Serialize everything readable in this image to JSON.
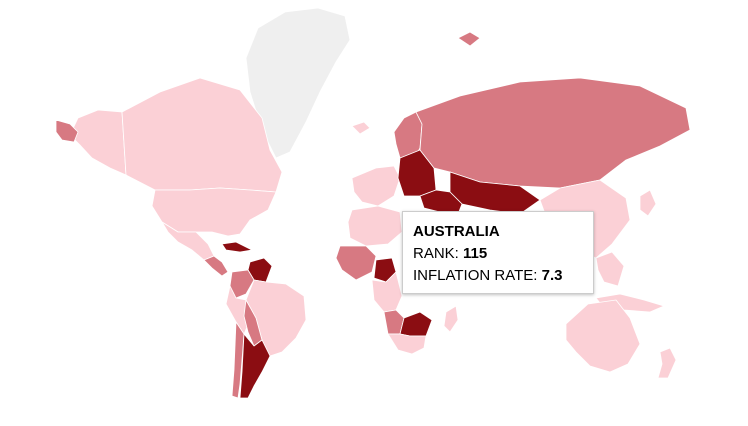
{
  "colors": {
    "no_data": "#efefef",
    "scale_low": "#fbd0d6",
    "scale_mid": "#d77982",
    "scale_high": "#8b0d12",
    "background": "#ffffff"
  },
  "tooltip": {
    "country": "AUSTRALIA",
    "rank_label": "RANK:",
    "rank_value": "115",
    "rate_label": "INFLATION RATE:",
    "rate_value": "7.3"
  },
  "regions": [
    {
      "name": "greenland",
      "shade": "none"
    },
    {
      "name": "canada",
      "shade": "low"
    },
    {
      "name": "usa",
      "shade": "low"
    },
    {
      "name": "alaska",
      "shade": "low"
    },
    {
      "name": "alaska-tip",
      "shade": "mid"
    },
    {
      "name": "mexico",
      "shade": "low"
    },
    {
      "name": "central-america",
      "shade": "mid"
    },
    {
      "name": "cuba",
      "shade": "high"
    },
    {
      "name": "venezuela",
      "shade": "high"
    },
    {
      "name": "colombia",
      "shade": "mid"
    },
    {
      "name": "brazil",
      "shade": "low"
    },
    {
      "name": "peru",
      "shade": "low"
    },
    {
      "name": "bolivia",
      "shade": "mid"
    },
    {
      "name": "argentina",
      "shade": "high"
    },
    {
      "name": "chile",
      "shade": "mid"
    },
    {
      "name": "iceland",
      "shade": "low"
    },
    {
      "name": "scandinavia",
      "shade": "mid"
    },
    {
      "name": "western-europe",
      "shade": "low"
    },
    {
      "name": "eastern-europe",
      "shade": "high"
    },
    {
      "name": "russia",
      "shade": "mid"
    },
    {
      "name": "kazakhstan",
      "shade": "high"
    },
    {
      "name": "middle-east",
      "shade": "high"
    },
    {
      "name": "north-africa",
      "shade": "low"
    },
    {
      "name": "west-africa",
      "shade": "mid"
    },
    {
      "name": "nigeria",
      "shade": "high"
    },
    {
      "name": "central-africa",
      "shade": "low"
    },
    {
      "name": "angola",
      "shade": "mid"
    },
    {
      "name": "zimbabwe",
      "shade": "high"
    },
    {
      "name": "southern-africa",
      "shade": "low"
    },
    {
      "name": "madagascar",
      "shade": "low"
    },
    {
      "name": "china",
      "shade": "low"
    },
    {
      "name": "southeast-asia",
      "shade": "low"
    },
    {
      "name": "indonesia",
      "shade": "low"
    },
    {
      "name": "australia",
      "shade": "low"
    },
    {
      "name": "new-zealand",
      "shade": "low"
    },
    {
      "name": "japan",
      "shade": "low"
    },
    {
      "name": "svalbard",
      "shade": "mid"
    }
  ]
}
